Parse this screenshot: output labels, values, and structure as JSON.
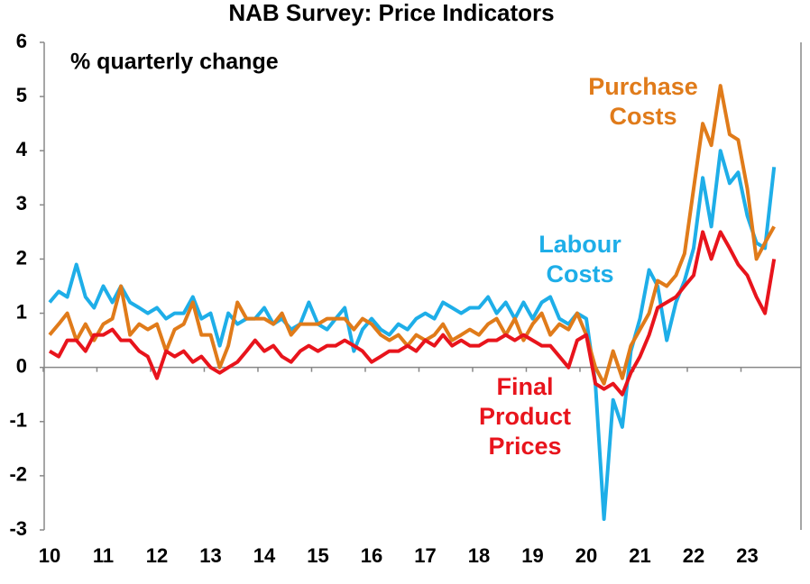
{
  "chart_data": {
    "type": "line",
    "title": "NAB Survey: Price Indicators",
    "subtitle": "% quarterly change",
    "x": [
      2010,
      2010.17,
      2010.33,
      2010.5,
      2010.67,
      2010.83,
      2011,
      2011.17,
      2011.33,
      2011.5,
      2011.67,
      2011.83,
      2012,
      2012.17,
      2012.33,
      2012.5,
      2012.67,
      2012.83,
      2013,
      2013.17,
      2013.33,
      2013.5,
      2013.67,
      2013.83,
      2014,
      2014.17,
      2014.33,
      2014.5,
      2014.67,
      2014.83,
      2015,
      2015.17,
      2015.33,
      2015.5,
      2015.67,
      2015.83,
      2016,
      2016.17,
      2016.33,
      2016.5,
      2016.67,
      2016.83,
      2017,
      2017.17,
      2017.33,
      2017.5,
      2017.67,
      2017.83,
      2018,
      2018.17,
      2018.33,
      2018.5,
      2018.67,
      2018.83,
      2019,
      2019.17,
      2019.33,
      2019.5,
      2019.67,
      2019.83,
      2020,
      2020.17,
      2020.33,
      2020.5,
      2020.67,
      2020.83,
      2021,
      2021.17,
      2021.33,
      2021.5,
      2021.67,
      2021.83,
      2022,
      2022.17,
      2022.33,
      2022.5,
      2022.67,
      2022.83,
      2023,
      2023.17,
      2023.33,
      2023.5
    ],
    "series": [
      {
        "name": "Labour Costs",
        "color": "#1eaee8",
        "values": [
          1.2,
          1.4,
          1.3,
          1.9,
          1.3,
          1.1,
          1.5,
          1.2,
          1.5,
          1.2,
          1.1,
          1.0,
          1.1,
          0.9,
          1.0,
          1.0,
          1.3,
          0.9,
          1.0,
          0.4,
          1.0,
          0.8,
          0.9,
          0.9,
          1.1,
          0.8,
          0.9,
          0.7,
          0.8,
          1.2,
          0.8,
          0.7,
          0.9,
          1.1,
          0.3,
          0.7,
          0.9,
          0.7,
          0.6,
          0.8,
          0.7,
          0.9,
          1.0,
          0.9,
          1.2,
          1.1,
          1.0,
          1.1,
          1.1,
          1.3,
          1.0,
          1.2,
          0.9,
          1.2,
          0.9,
          1.2,
          1.3,
          0.9,
          0.8,
          1.0,
          0.9,
          -0.3,
          -2.8,
          -0.6,
          -1.1,
          0.3,
          0.9,
          1.8,
          1.5,
          0.5,
          1.2,
          1.6,
          2.2,
          3.5,
          2.6,
          4.0,
          3.4,
          3.6,
          2.8,
          2.3,
          2.2,
          3.7
        ]
      },
      {
        "name": "Purchase Costs",
        "color": "#e07b1a",
        "values": [
          0.6,
          0.8,
          1.0,
          0.5,
          0.8,
          0.5,
          0.8,
          0.9,
          1.5,
          0.6,
          0.8,
          0.7,
          0.8,
          0.3,
          0.7,
          0.8,
          1.2,
          0.6,
          0.6,
          0.0,
          0.4,
          1.2,
          0.9,
          0.9,
          0.9,
          0.8,
          1.0,
          0.6,
          0.8,
          0.8,
          0.8,
          0.9,
          0.9,
          0.9,
          0.7,
          0.9,
          0.8,
          0.6,
          0.5,
          0.6,
          0.4,
          0.6,
          0.5,
          0.6,
          0.8,
          0.5,
          0.6,
          0.7,
          0.6,
          0.8,
          0.9,
          0.6,
          0.9,
          0.5,
          0.8,
          1.0,
          0.6,
          0.8,
          0.7,
          1.0,
          0.6,
          0.0,
          -0.3,
          0.3,
          -0.2,
          0.4,
          0.7,
          1.0,
          1.6,
          1.5,
          1.7,
          2.1,
          3.3,
          4.5,
          4.1,
          5.2,
          4.3,
          4.2,
          3.3,
          2.0,
          2.3,
          2.6
        ]
      },
      {
        "name": "Final Product Prices",
        "color": "#e8141c",
        "values": [
          0.3,
          0.2,
          0.5,
          0.5,
          0.3,
          0.6,
          0.6,
          0.7,
          0.5,
          0.5,
          0.3,
          0.2,
          -0.2,
          0.3,
          0.2,
          0.3,
          0.1,
          0.2,
          0.0,
          -0.1,
          0.0,
          0.1,
          0.3,
          0.5,
          0.3,
          0.4,
          0.2,
          0.1,
          0.3,
          0.4,
          0.3,
          0.4,
          0.4,
          0.5,
          0.4,
          0.3,
          0.1,
          0.2,
          0.3,
          0.3,
          0.4,
          0.3,
          0.5,
          0.4,
          0.6,
          0.4,
          0.5,
          0.4,
          0.4,
          0.5,
          0.5,
          0.6,
          0.5,
          0.6,
          0.5,
          0.4,
          0.4,
          0.2,
          0.0,
          0.5,
          0.6,
          -0.3,
          -0.4,
          -0.3,
          -0.5,
          -0.1,
          0.2,
          0.6,
          1.1,
          1.2,
          1.3,
          1.5,
          1.7,
          2.5,
          2.0,
          2.5,
          2.2,
          1.9,
          1.7,
          1.3,
          1.0,
          2.0
        ]
      }
    ],
    "xlim": [
      2009.9,
      2024.0
    ],
    "xticks": [
      {
        "value": 2010,
        "label": "10"
      },
      {
        "value": 2011,
        "label": "11"
      },
      {
        "value": 2012,
        "label": "12"
      },
      {
        "value": 2013,
        "label": "13"
      },
      {
        "value": 2014,
        "label": "14"
      },
      {
        "value": 2015,
        "label": "15"
      },
      {
        "value": 2016,
        "label": "16"
      },
      {
        "value": 2017,
        "label": "17"
      },
      {
        "value": 2018,
        "label": "18"
      },
      {
        "value": 2019,
        "label": "19"
      },
      {
        "value": 2020,
        "label": "20"
      },
      {
        "value": 2021,
        "label": "21"
      },
      {
        "value": 2022,
        "label": "22"
      },
      {
        "value": 2023,
        "label": "23"
      }
    ],
    "ylim": [
      -3,
      6
    ],
    "yticks": [
      -3,
      -2,
      -1,
      0,
      1,
      2,
      3,
      4,
      5,
      6
    ],
    "grid": false
  }
}
